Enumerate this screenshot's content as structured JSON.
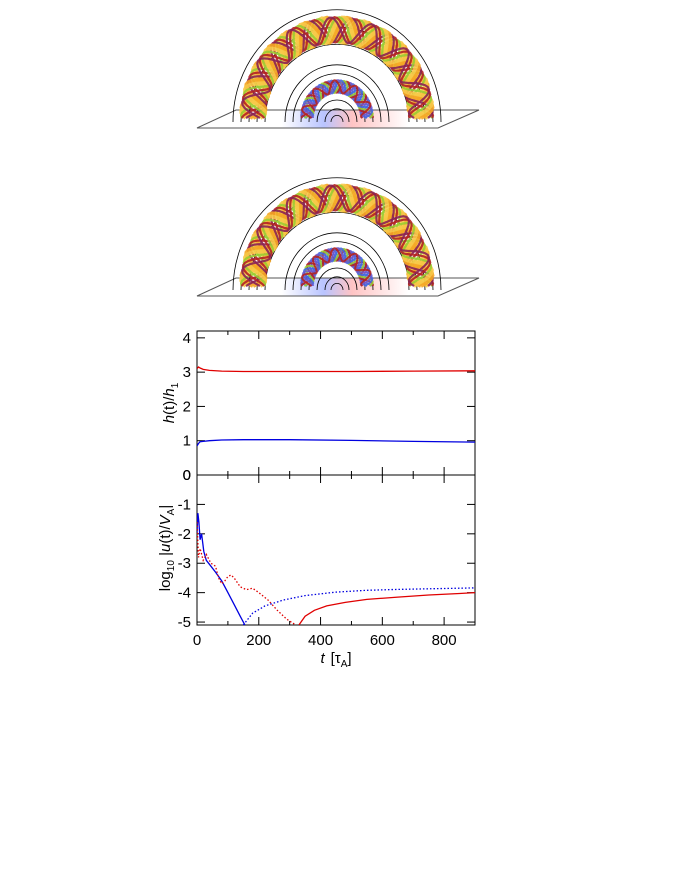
{
  "figure": {
    "render_panels": [
      "flux-rope-render-top",
      "flux-rope-render-bottom"
    ],
    "rope_colors": {
      "large_rope": [
        "#f5a623",
        "#f7c948",
        "#9acd32",
        "#b22222",
        "#8b2252"
      ],
      "small_rope": [
        "#4169e1",
        "#6a5acd",
        "#b22222",
        "#9acd32"
      ],
      "field_lines": "#000000",
      "plane_tint_left": "#a8b8ff",
      "plane_tint_right": "#ffb8b8"
    }
  },
  "chart_data": [
    {
      "type": "line",
      "xlim": [
        0,
        900
      ],
      "ylim": [
        0,
        4.2
      ],
      "ylabel_parts": {
        "h": "h",
        "t": "(t)/",
        "h1": "h",
        "sub": "1"
      },
      "yticks": [
        "0",
        "1",
        "2",
        "3",
        "4"
      ],
      "series": [
        {
          "color": "#e00000",
          "style": "solid",
          "x": [
            0,
            5,
            10,
            20,
            40,
            80,
            150,
            300,
            500,
            700,
            900
          ],
          "y": [
            3.1,
            3.15,
            3.12,
            3.08,
            3.05,
            3.03,
            3.02,
            3.02,
            3.02,
            3.03,
            3.04
          ]
        },
        {
          "color": "#0000e0",
          "style": "solid",
          "x": [
            0,
            5,
            10,
            20,
            40,
            80,
            150,
            300,
            500,
            700,
            900
          ],
          "y": [
            0.85,
            0.92,
            0.97,
            0.98,
            1.0,
            1.02,
            1.03,
            1.03,
            1.01,
            0.98,
            0.96
          ]
        }
      ]
    },
    {
      "type": "line",
      "xlim": [
        0,
        900
      ],
      "ylim": [
        -5.1,
        0
      ],
      "yticks": [
        "0",
        "-1",
        "-2",
        "-3",
        "-4",
        "-5"
      ],
      "xticks": [
        "0",
        "200",
        "400",
        "600",
        "800"
      ],
      "ylabel_parts": {
        "log": "log",
        "sub": "10",
        "rest": " |",
        "u": "u",
        "t": "(t)/",
        "V": "V",
        "vsub": "A",
        "end": "|"
      },
      "xlabel_parts": {
        "t": "t",
        "bracket_open": "[",
        "tau": "τ",
        "tausub": "A",
        "bracket_close": "]"
      },
      "series": [
        {
          "color": "#0000e0",
          "style": "solid",
          "x": [
            0,
            3,
            6,
            10,
            15,
            22,
            30,
            45,
            60,
            80,
            100,
            120,
            140,
            155
          ],
          "y": [
            -2.0,
            -1.3,
            -1.6,
            -2.2,
            -2.0,
            -2.6,
            -2.9,
            -3.1,
            -3.3,
            -3.6,
            -4.0,
            -4.4,
            -4.8,
            -5.1
          ]
        },
        {
          "color": "#e00000",
          "style": "dotted",
          "x": [
            0,
            5,
            10,
            20,
            30,
            45,
            60,
            70,
            80,
            90,
            100,
            110,
            120,
            140,
            160,
            180,
            200,
            230,
            260,
            290,
            320
          ],
          "y": [
            -1.6,
            -2.8,
            -2.5,
            -2.9,
            -2.7,
            -3.0,
            -3.1,
            -3.5,
            -3.7,
            -3.6,
            -3.45,
            -3.4,
            -3.5,
            -3.8,
            -3.9,
            -3.85,
            -4.0,
            -4.25,
            -4.6,
            -4.9,
            -5.1
          ]
        },
        {
          "color": "#0000e0",
          "style": "dotted",
          "x": [
            150,
            180,
            220,
            280,
            350,
            450,
            550,
            650,
            750,
            850,
            900
          ],
          "y": [
            -5.1,
            -4.7,
            -4.45,
            -4.25,
            -4.1,
            -3.98,
            -3.92,
            -3.89,
            -3.87,
            -3.85,
            -3.84
          ]
        },
        {
          "color": "#e00000",
          "style": "solid",
          "x": [
            330,
            350,
            380,
            420,
            480,
            550,
            650,
            750,
            850,
            900
          ],
          "y": [
            -5.1,
            -4.8,
            -4.6,
            -4.45,
            -4.33,
            -4.23,
            -4.15,
            -4.08,
            -4.03,
            -4.0
          ]
        }
      ]
    }
  ]
}
